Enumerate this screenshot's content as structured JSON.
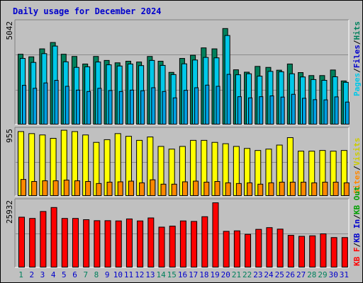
{
  "chart_data": [
    {
      "type": "bar",
      "title": "Daily usage for December 2024",
      "panel": "hits-files-pages",
      "ymax_label": "5042",
      "ylim": [
        0,
        5042
      ],
      "categories": [
        "1",
        "2",
        "3",
        "4",
        "5",
        "6",
        "7",
        "8",
        "9",
        "10",
        "11",
        "12",
        "13",
        "14",
        "15",
        "16",
        "17",
        "18",
        "19",
        "20",
        "21",
        "22",
        "23",
        "24",
        "25",
        "26",
        "27",
        "28",
        "29",
        "30",
        "31"
      ],
      "series": [
        {
          "name": "Hits",
          "color": "#00805c",
          "values": [
            3510,
            3380,
            3780,
            4100,
            3510,
            3400,
            3020,
            3400,
            3200,
            3080,
            3160,
            3120,
            3400,
            3160,
            2600,
            3300,
            3460,
            3830,
            3780,
            4800,
            2730,
            2610,
            2900,
            2850,
            2710,
            3020,
            2590,
            2440,
            2440,
            2720,
            2170
          ]
        },
        {
          "name": "Files",
          "color": "#00c8e8",
          "values": [
            3300,
            3100,
            3540,
            3920,
            3130,
            2850,
            2880,
            3120,
            2980,
            2920,
            3020,
            2940,
            3200,
            2950,
            2490,
            3030,
            3220,
            3350,
            3330,
            4450,
            2480,
            2530,
            2410,
            2650,
            2630,
            2530,
            2370,
            2240,
            2200,
            2380,
            2100
          ]
        },
        {
          "name": "Pages",
          "color": "#00a8f0",
          "values": [
            1950,
            1800,
            2070,
            2200,
            1900,
            1710,
            1640,
            1800,
            1690,
            1640,
            1710,
            1680,
            1830,
            1640,
            1320,
            1700,
            1830,
            1960,
            1900,
            2500,
            1380,
            1320,
            1380,
            1420,
            1360,
            1500,
            1300,
            1230,
            1220,
            1370,
            1110
          ]
        }
      ]
    },
    {
      "type": "bar",
      "panel": "visits-sites",
      "ymax_label": "955",
      "ylim": [
        0,
        955
      ],
      "categories": [
        "1",
        "2",
        "3",
        "4",
        "5",
        "6",
        "7",
        "8",
        "9",
        "10",
        "11",
        "12",
        "13",
        "14",
        "15",
        "16",
        "17",
        "18",
        "19",
        "20",
        "21",
        "22",
        "23",
        "24",
        "25",
        "26",
        "27",
        "28",
        "29",
        "30",
        "31"
      ],
      "series": [
        {
          "name": "Visits",
          "color": "#ffff00",
          "values": [
            950,
            920,
            900,
            850,
            970,
            950,
            900,
            790,
            830,
            920,
            880,
            820,
            870,
            730,
            690,
            730,
            820,
            820,
            790,
            770,
            730,
            700,
            670,
            690,
            750,
            860,
            660,
            660,
            670,
            660,
            670
          ]
        },
        {
          "name": "Sites",
          "color": "#ff8800",
          "values": [
            240,
            210,
            220,
            220,
            230,
            220,
            210,
            180,
            200,
            205,
            215,
            190,
            235,
            170,
            170,
            205,
            215,
            200,
            210,
            190,
            180,
            190,
            170,
            190,
            200,
            200,
            200,
            190,
            200,
            200,
            190
          ]
        }
      ]
    },
    {
      "type": "bar",
      "panel": "kbytes",
      "ymax_label": "25932",
      "ylim": [
        0,
        25932
      ],
      "categories": [
        "1",
        "2",
        "3",
        "4",
        "5",
        "6",
        "7",
        "8",
        "9",
        "10",
        "11",
        "12",
        "13",
        "14",
        "15",
        "16",
        "17",
        "18",
        "19",
        "20",
        "21",
        "22",
        "23",
        "24",
        "25",
        "26",
        "27",
        "28",
        "29",
        "30",
        "31"
      ],
      "series": [
        {
          "name": "KB F",
          "color": "#ff0000",
          "values": [
            20100,
            19600,
            22400,
            24000,
            19600,
            19600,
            19100,
            18700,
            18700,
            18600,
            19400,
            18600,
            19800,
            16100,
            16500,
            18600,
            18400,
            20300,
            25900,
            14400,
            14600,
            13200,
            15200,
            15900,
            15300,
            12800,
            12400,
            12600,
            13400,
            11900,
            11900
          ]
        }
      ]
    }
  ],
  "days": [
    {
      "label": "1",
      "weekend": true
    },
    {
      "label": "2",
      "weekend": false
    },
    {
      "label": "3",
      "weekend": false
    },
    {
      "label": "4",
      "weekend": false
    },
    {
      "label": "5",
      "weekend": false
    },
    {
      "label": "6",
      "weekend": false
    },
    {
      "label": "7",
      "weekend": true
    },
    {
      "label": "8",
      "weekend": true
    },
    {
      "label": "9",
      "weekend": false
    },
    {
      "label": "10",
      "weekend": false
    },
    {
      "label": "11",
      "weekend": false
    },
    {
      "label": "12",
      "weekend": false
    },
    {
      "label": "13",
      "weekend": false
    },
    {
      "label": "14",
      "weekend": true
    },
    {
      "label": "15",
      "weekend": true
    },
    {
      "label": "16",
      "weekend": false
    },
    {
      "label": "17",
      "weekend": false
    },
    {
      "label": "18",
      "weekend": false
    },
    {
      "label": "19",
      "weekend": false
    },
    {
      "label": "20",
      "weekend": false
    },
    {
      "label": "21",
      "weekend": true
    },
    {
      "label": "22",
      "weekend": true
    },
    {
      "label": "23",
      "weekend": false
    },
    {
      "label": "24",
      "weekend": false
    },
    {
      "label": "25",
      "weekend": false
    },
    {
      "label": "26",
      "weekend": false
    },
    {
      "label": "27",
      "weekend": false
    },
    {
      "label": "28",
      "weekend": true
    },
    {
      "label": "29",
      "weekend": true
    },
    {
      "label": "30",
      "weekend": false
    },
    {
      "label": "31",
      "weekend": false
    }
  ],
  "legends": {
    "top": [
      {
        "text": "Pages",
        "color": "#00c8e8"
      },
      {
        "text": "/",
        "color": "#000000"
      },
      {
        "text": "Files",
        "color": "#0000cc"
      },
      {
        "text": "/",
        "color": "#000000"
      },
      {
        "text": "Hits",
        "color": "#00805c"
      }
    ],
    "middle": [
      {
        "text": "Sites",
        "color": "#ff8800"
      },
      {
        "text": "/",
        "color": "#000000"
      },
      {
        "text": "Visits",
        "color": "#cccc00"
      }
    ],
    "bottom": [
      {
        "text": "KB F",
        "color": "#ff0000"
      },
      {
        "text": "/",
        "color": "#000000"
      },
      {
        "text": "KB In",
        "color": "#0000cc"
      },
      {
        "text": "/",
        "color": "#000000"
      },
      {
        "text": "KB Out",
        "color": "#00a000"
      }
    ]
  },
  "colors": {
    "background": "#c0c0c0",
    "frame": "#ffffff",
    "title": "#0000cc",
    "weekday_label": "#0000cc",
    "weekend_label": "#00805c"
  }
}
